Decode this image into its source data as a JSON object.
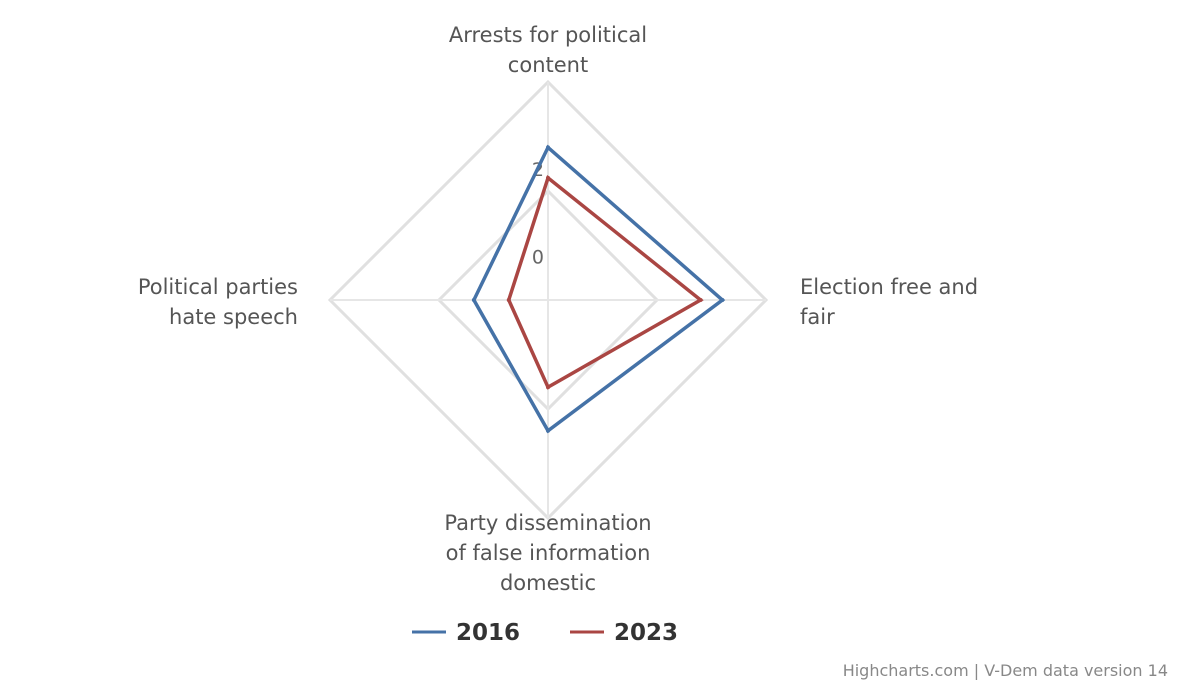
{
  "chart_data": {
    "type": "radar",
    "categories": [
      "Arrests for political content",
      "Election free and fair",
      "Party dissemination of false information domestic",
      "Political parties hate speech"
    ],
    "category_label_lines": [
      [
        "Arrests for political",
        "content"
      ],
      [
        "Election free and",
        "fair"
      ],
      [
        "Party dissemination",
        "of false information",
        "domestic"
      ],
      [
        "Political parties",
        "hate speech"
      ]
    ],
    "radial_ticks": [
      "0",
      "2"
    ],
    "radial_range": [
      -1,
      4
    ],
    "grid": true,
    "legend_position": "bottom",
    "series": [
      {
        "name": "2016",
        "color": "#4572A7",
        "values": [
          2.5,
          3.0,
          2.0,
          0.7
        ]
      },
      {
        "name": "2023",
        "color": "#AA4643",
        "values": [
          1.8,
          2.5,
          1.0,
          -0.1
        ]
      }
    ],
    "credits": "Highcharts.com | V-Dem data version 14"
  }
}
